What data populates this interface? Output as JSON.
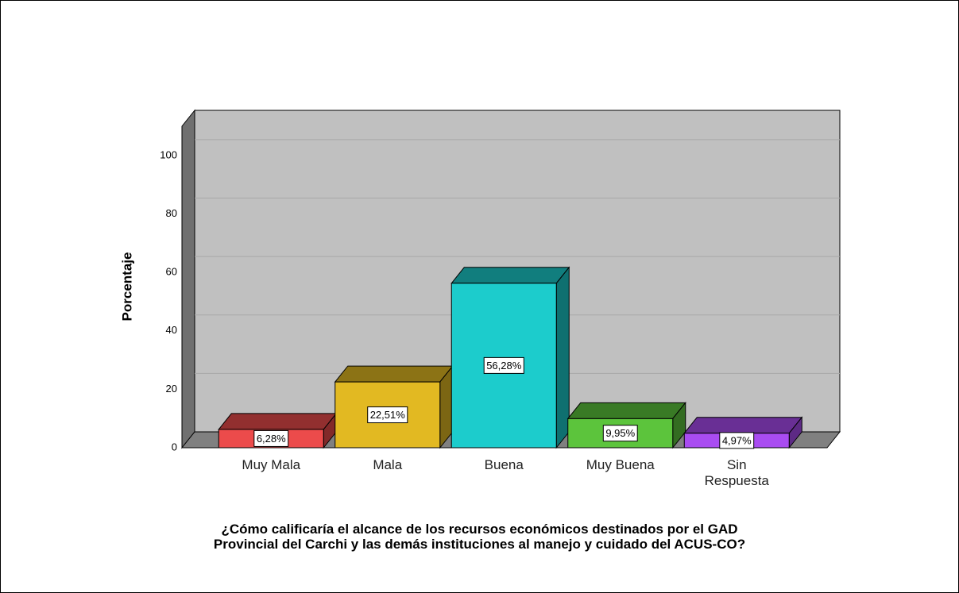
{
  "chart_data": {
    "type": "bar3d",
    "title": [
      "¿Cómo calificaría el alcance de los recursos económicos destinados por el GAD",
      "Provincial del Carchi y las demás instituciones al manejo y cuidado del ACUS-CO?"
    ],
    "y_label": "Porcentaje",
    "categories": [
      "Muy Mala",
      "Mala",
      "Buena",
      "Muy Buena",
      "Sin Respuesta"
    ],
    "values": [
      6.28,
      22.51,
      56.28,
      9.95,
      4.97
    ],
    "value_labels": [
      "6,28%",
      "22,51%",
      "56,28%",
      "9,95%",
      "4,97%"
    ],
    "colors": [
      "#ec4b4b",
      "#e2b922",
      "#1ccccc",
      "#5cc43c",
      "#a94cf1"
    ],
    "ylim": [
      0,
      110
    ],
    "yticks": [
      0,
      20,
      40,
      60,
      80,
      100
    ],
    "grid": true
  }
}
